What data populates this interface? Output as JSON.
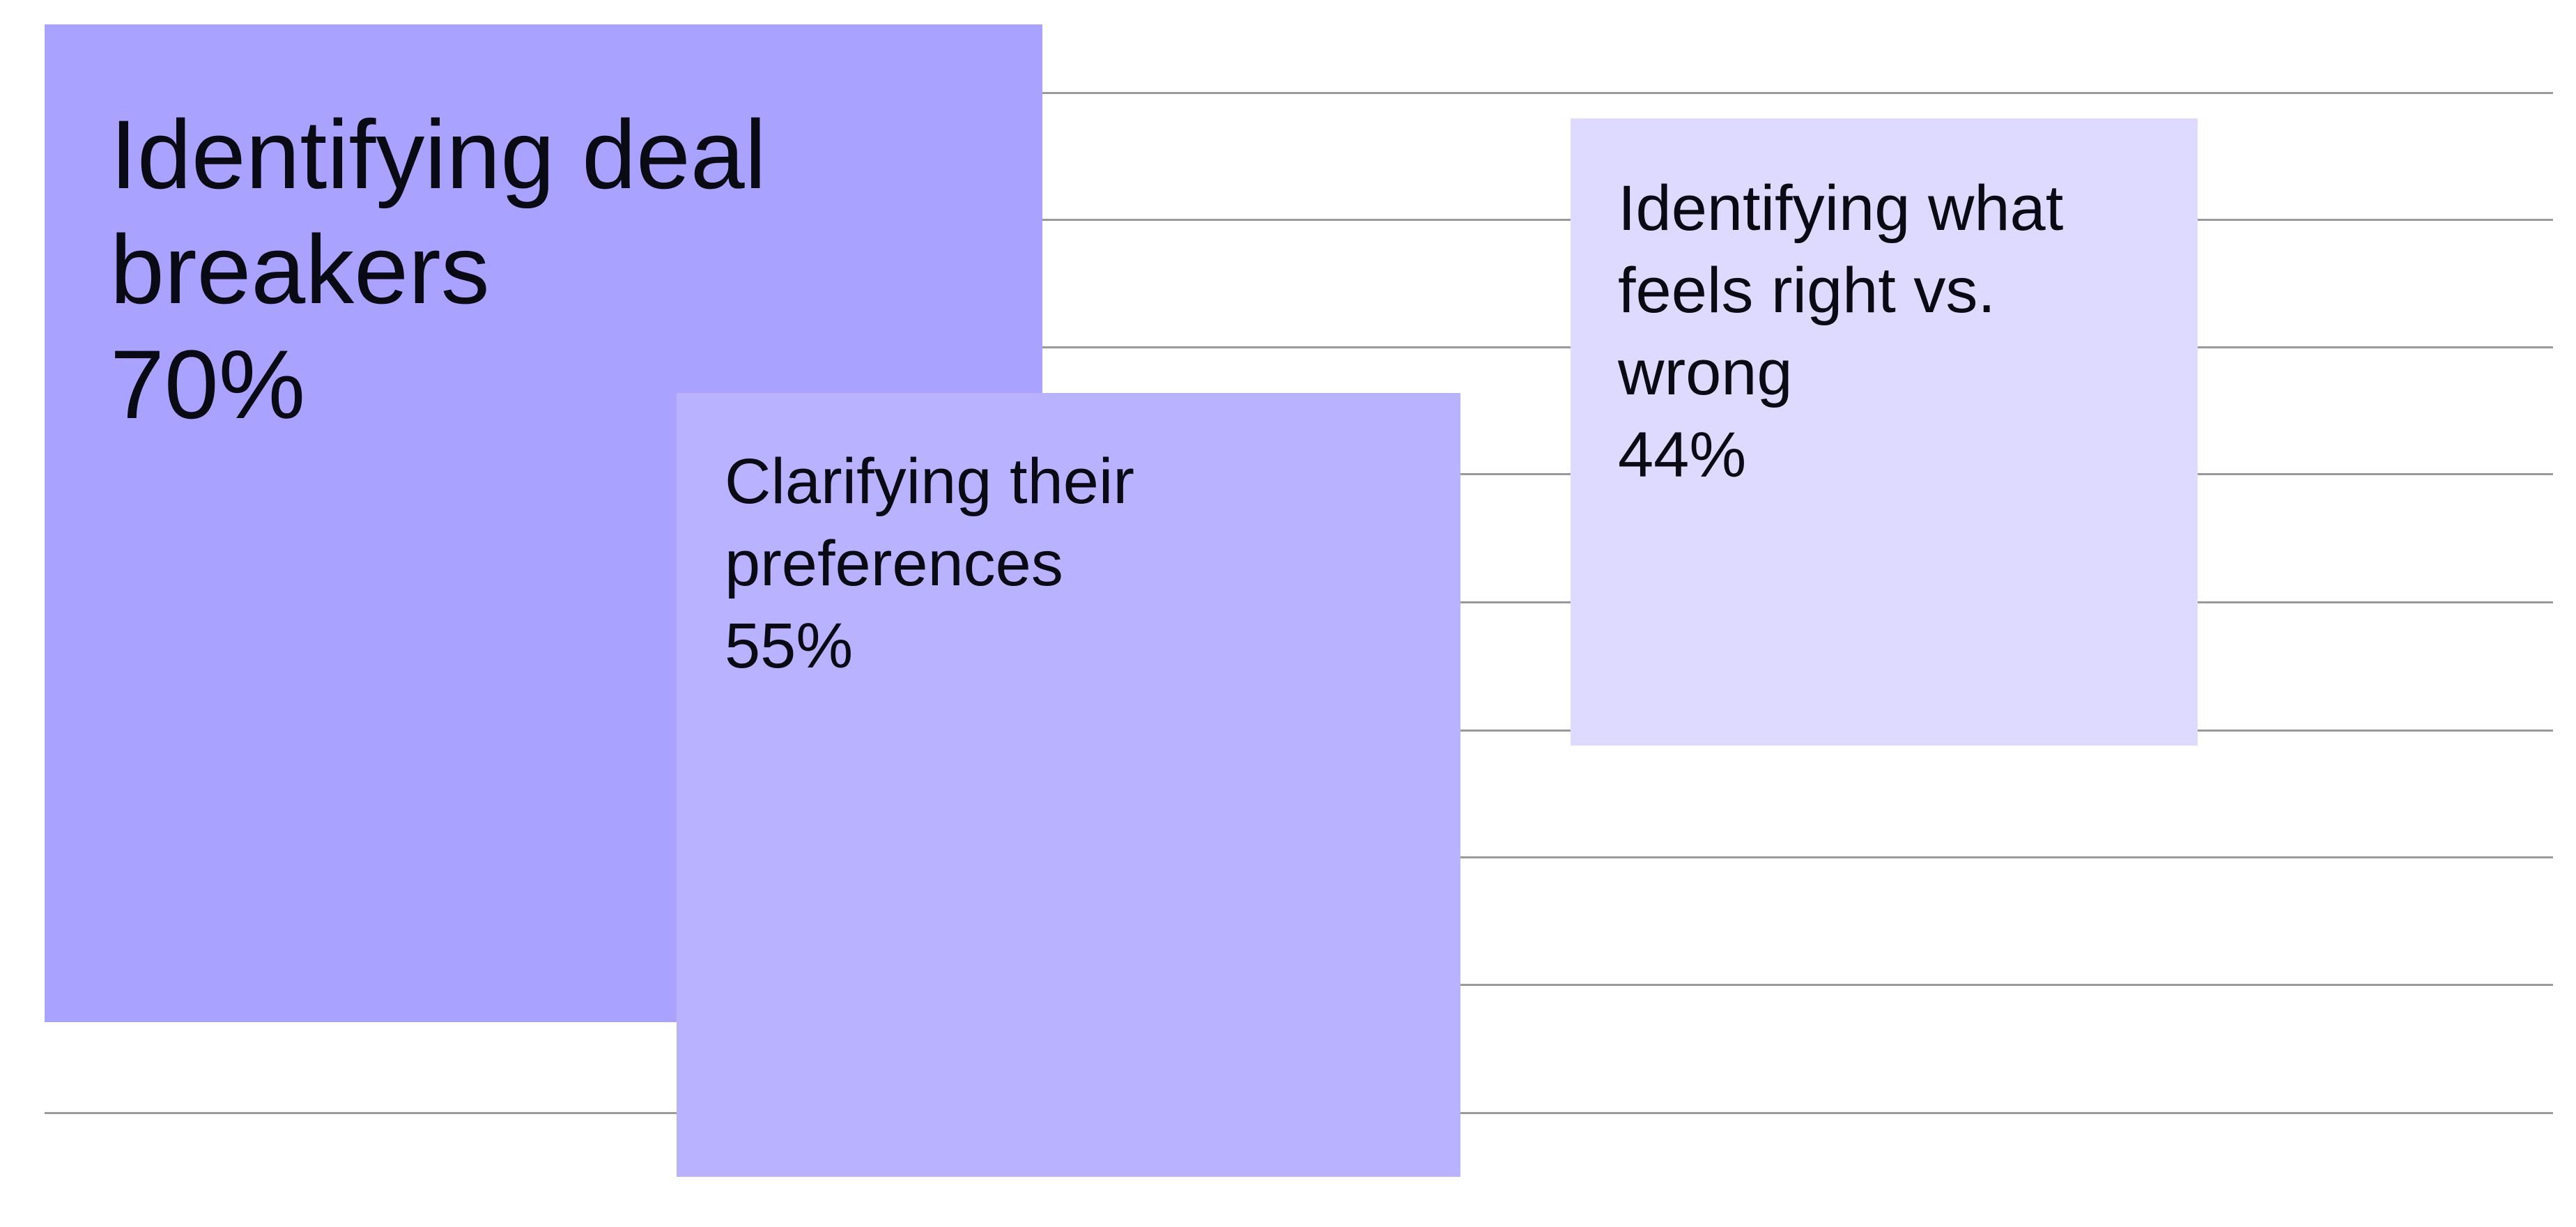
{
  "chart_data": {
    "type": "square",
    "categories": [
      "Identifying deal breakers",
      "Clarifying their preferences",
      "Identifying what feels right vs. wrong"
    ],
    "values": [
      70,
      55,
      44
    ],
    "value_labels": [
      "70%",
      "55%",
      "44%"
    ],
    "colors": [
      "#a9a2fe",
      "#b8b2ff",
      "#dedaff"
    ]
  }
}
